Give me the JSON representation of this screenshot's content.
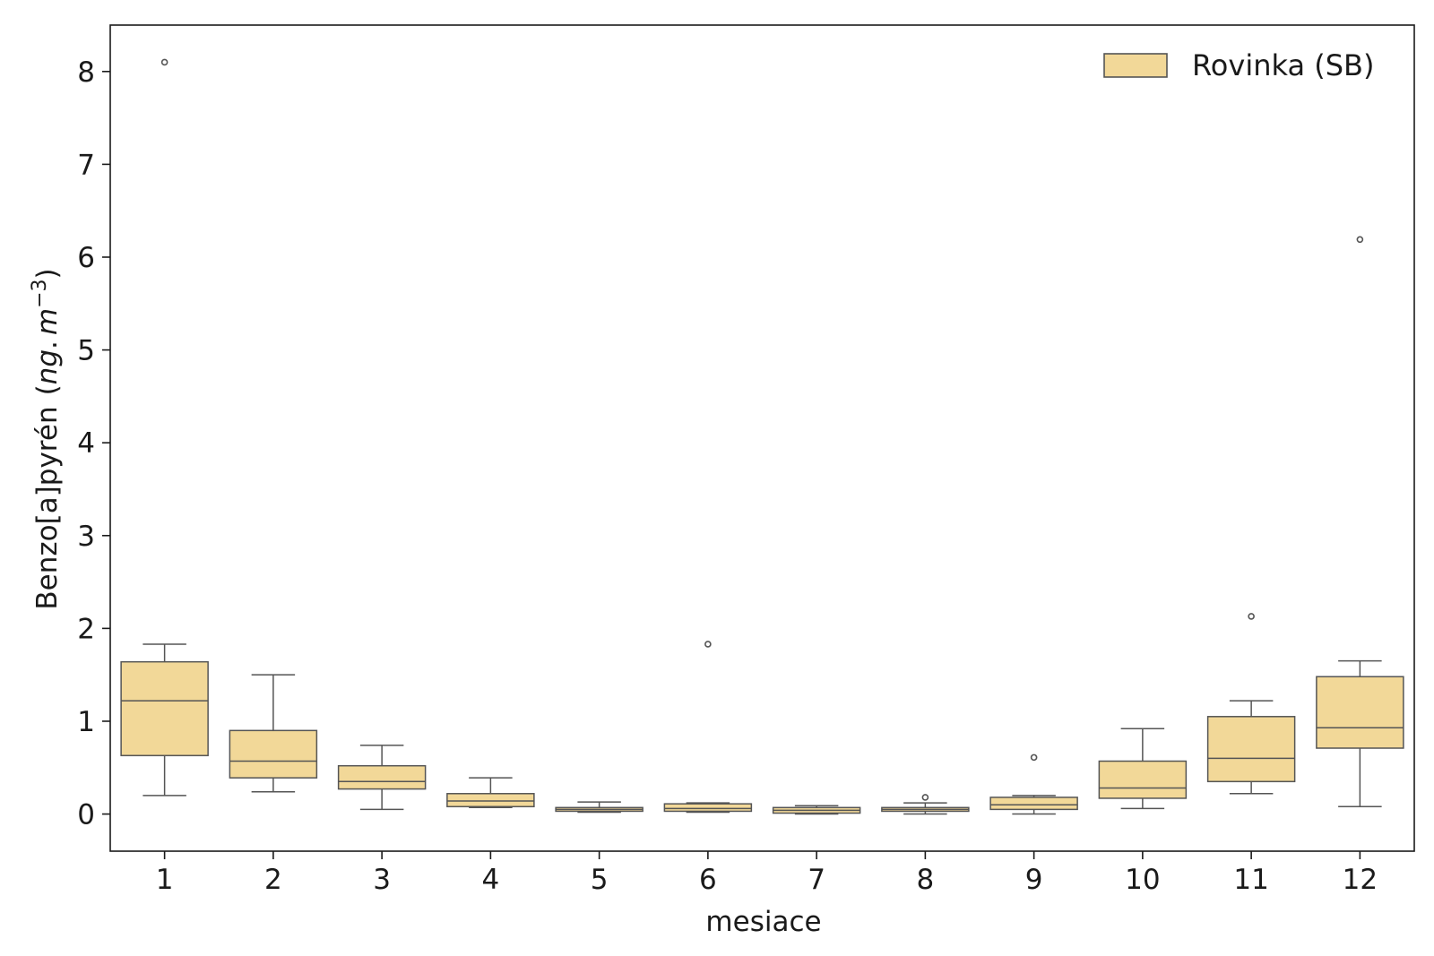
{
  "chart_data": {
    "type": "boxplot",
    "title": "",
    "xlabel": "mesiace",
    "ylabel_main": "Benzo[a]pyrén",
    "ylabel_unit_open": "(",
    "ylabel_unit_ng": "ng",
    "ylabel_unit_dot": ".",
    "ylabel_unit_m": "m",
    "ylabel_unit_exp": "−3",
    "ylabel_unit_close": ")",
    "ylim": [
      -0.4,
      8.5
    ],
    "yticks": [
      0,
      1,
      2,
      3,
      4,
      5,
      6,
      7,
      8
    ],
    "grid": false,
    "legend": {
      "label": "Rovinka (SB)",
      "position": "top-right"
    },
    "colors": {
      "box_fill": "#f2d898",
      "line": "#555555",
      "axis": "#1a1a1a"
    },
    "categories": [
      "1",
      "2",
      "3",
      "4",
      "5",
      "6",
      "7",
      "8",
      "9",
      "10",
      "11",
      "12"
    ],
    "series": [
      {
        "name": "Rovinka (SB)",
        "boxes": [
          {
            "category": "1",
            "whisker_low": 0.2,
            "q1": 0.63,
            "median": 1.22,
            "q3": 1.64,
            "whisker_high": 1.83,
            "outliers": [
              8.1
            ]
          },
          {
            "category": "2",
            "whisker_low": 0.24,
            "q1": 0.39,
            "median": 0.57,
            "q3": 0.9,
            "whisker_high": 1.5,
            "outliers": []
          },
          {
            "category": "3",
            "whisker_low": 0.05,
            "q1": 0.27,
            "median": 0.35,
            "q3": 0.52,
            "whisker_high": 0.74,
            "outliers": []
          },
          {
            "category": "4",
            "whisker_low": 0.07,
            "q1": 0.08,
            "median": 0.14,
            "q3": 0.22,
            "whisker_high": 0.39,
            "outliers": []
          },
          {
            "category": "5",
            "whisker_low": 0.02,
            "q1": 0.03,
            "median": 0.05,
            "q3": 0.07,
            "whisker_high": 0.13,
            "outliers": []
          },
          {
            "category": "6",
            "whisker_low": 0.02,
            "q1": 0.03,
            "median": 0.06,
            "q3": 0.11,
            "whisker_high": 0.12,
            "outliers": [
              1.83
            ]
          },
          {
            "category": "7",
            "whisker_low": 0.0,
            "q1": 0.01,
            "median": 0.04,
            "q3": 0.07,
            "whisker_high": 0.09,
            "outliers": []
          },
          {
            "category": "8",
            "whisker_low": 0.0,
            "q1": 0.03,
            "median": 0.05,
            "q3": 0.07,
            "whisker_high": 0.12,
            "outliers": [
              0.18
            ]
          },
          {
            "category": "9",
            "whisker_low": 0.0,
            "q1": 0.05,
            "median": 0.1,
            "q3": 0.18,
            "whisker_high": 0.2,
            "outliers": [
              0.61
            ]
          },
          {
            "category": "10",
            "whisker_low": 0.06,
            "q1": 0.17,
            "median": 0.28,
            "q3": 0.57,
            "whisker_high": 0.92,
            "outliers": []
          },
          {
            "category": "11",
            "whisker_low": 0.22,
            "q1": 0.35,
            "median": 0.6,
            "q3": 1.05,
            "whisker_high": 1.22,
            "outliers": [
              2.13
            ]
          },
          {
            "category": "12",
            "whisker_low": 0.08,
            "q1": 0.71,
            "median": 0.93,
            "q3": 1.48,
            "whisker_high": 1.65,
            "outliers": [
              6.19
            ]
          }
        ]
      }
    ]
  }
}
